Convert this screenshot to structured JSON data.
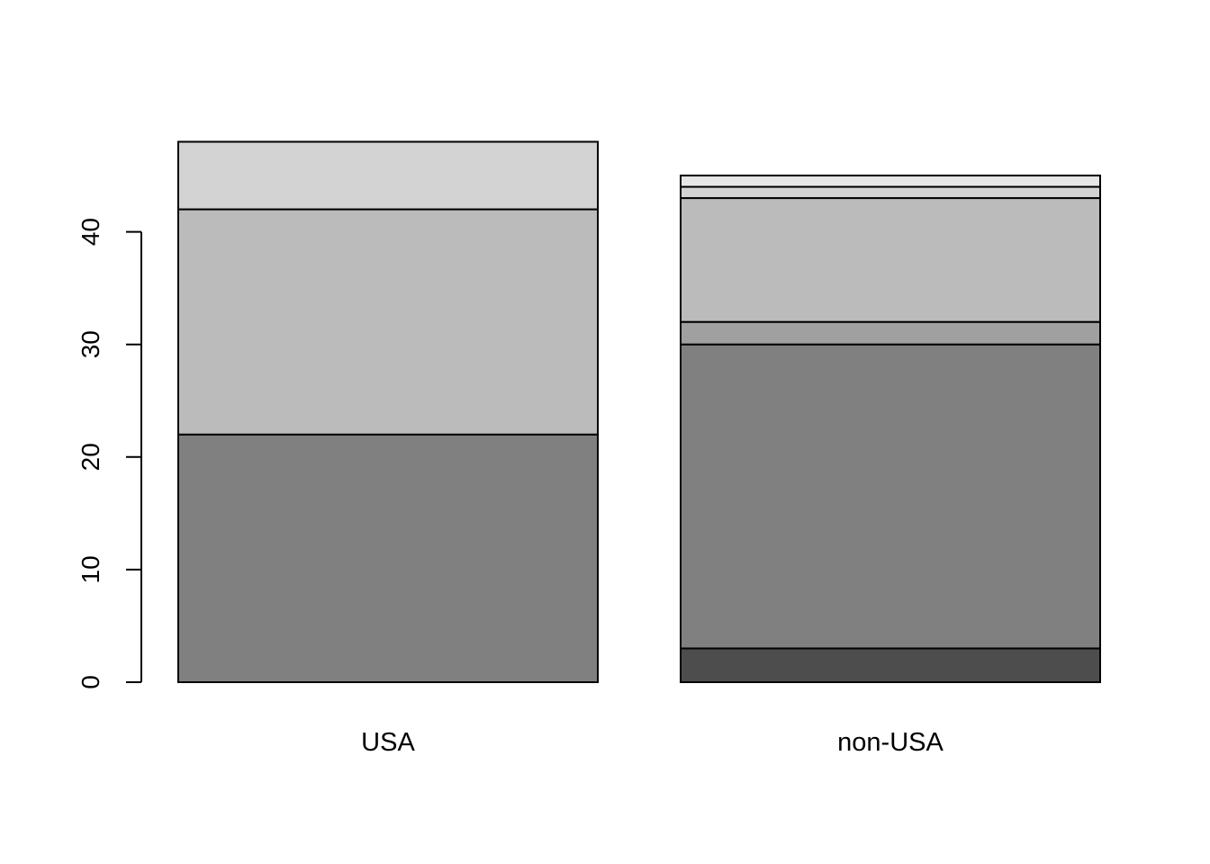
{
  "chart_data": {
    "type": "bar",
    "stacked": true,
    "categories": [
      "USA",
      "non-USA"
    ],
    "segments": [
      [
        {
          "value": 22,
          "color": "#808080"
        },
        {
          "value": 20,
          "color": "#bbbbbb"
        },
        {
          "value": 6,
          "color": "#d3d3d3"
        }
      ],
      [
        {
          "value": 3,
          "color": "#4d4d4d"
        },
        {
          "value": 27,
          "color": "#808080"
        },
        {
          "value": 2,
          "color": "#a0a0a0"
        },
        {
          "value": 11,
          "color": "#bbbbbb"
        },
        {
          "value": 1,
          "color": "#d3d3d3"
        },
        {
          "value": 1,
          "color": "#e6e6e6"
        }
      ]
    ],
    "totals": [
      48,
      45
    ],
    "yticks": [
      0,
      10,
      20,
      30,
      40
    ],
    "ylim": [
      0,
      48
    ],
    "grid": false,
    "legend": false
  }
}
